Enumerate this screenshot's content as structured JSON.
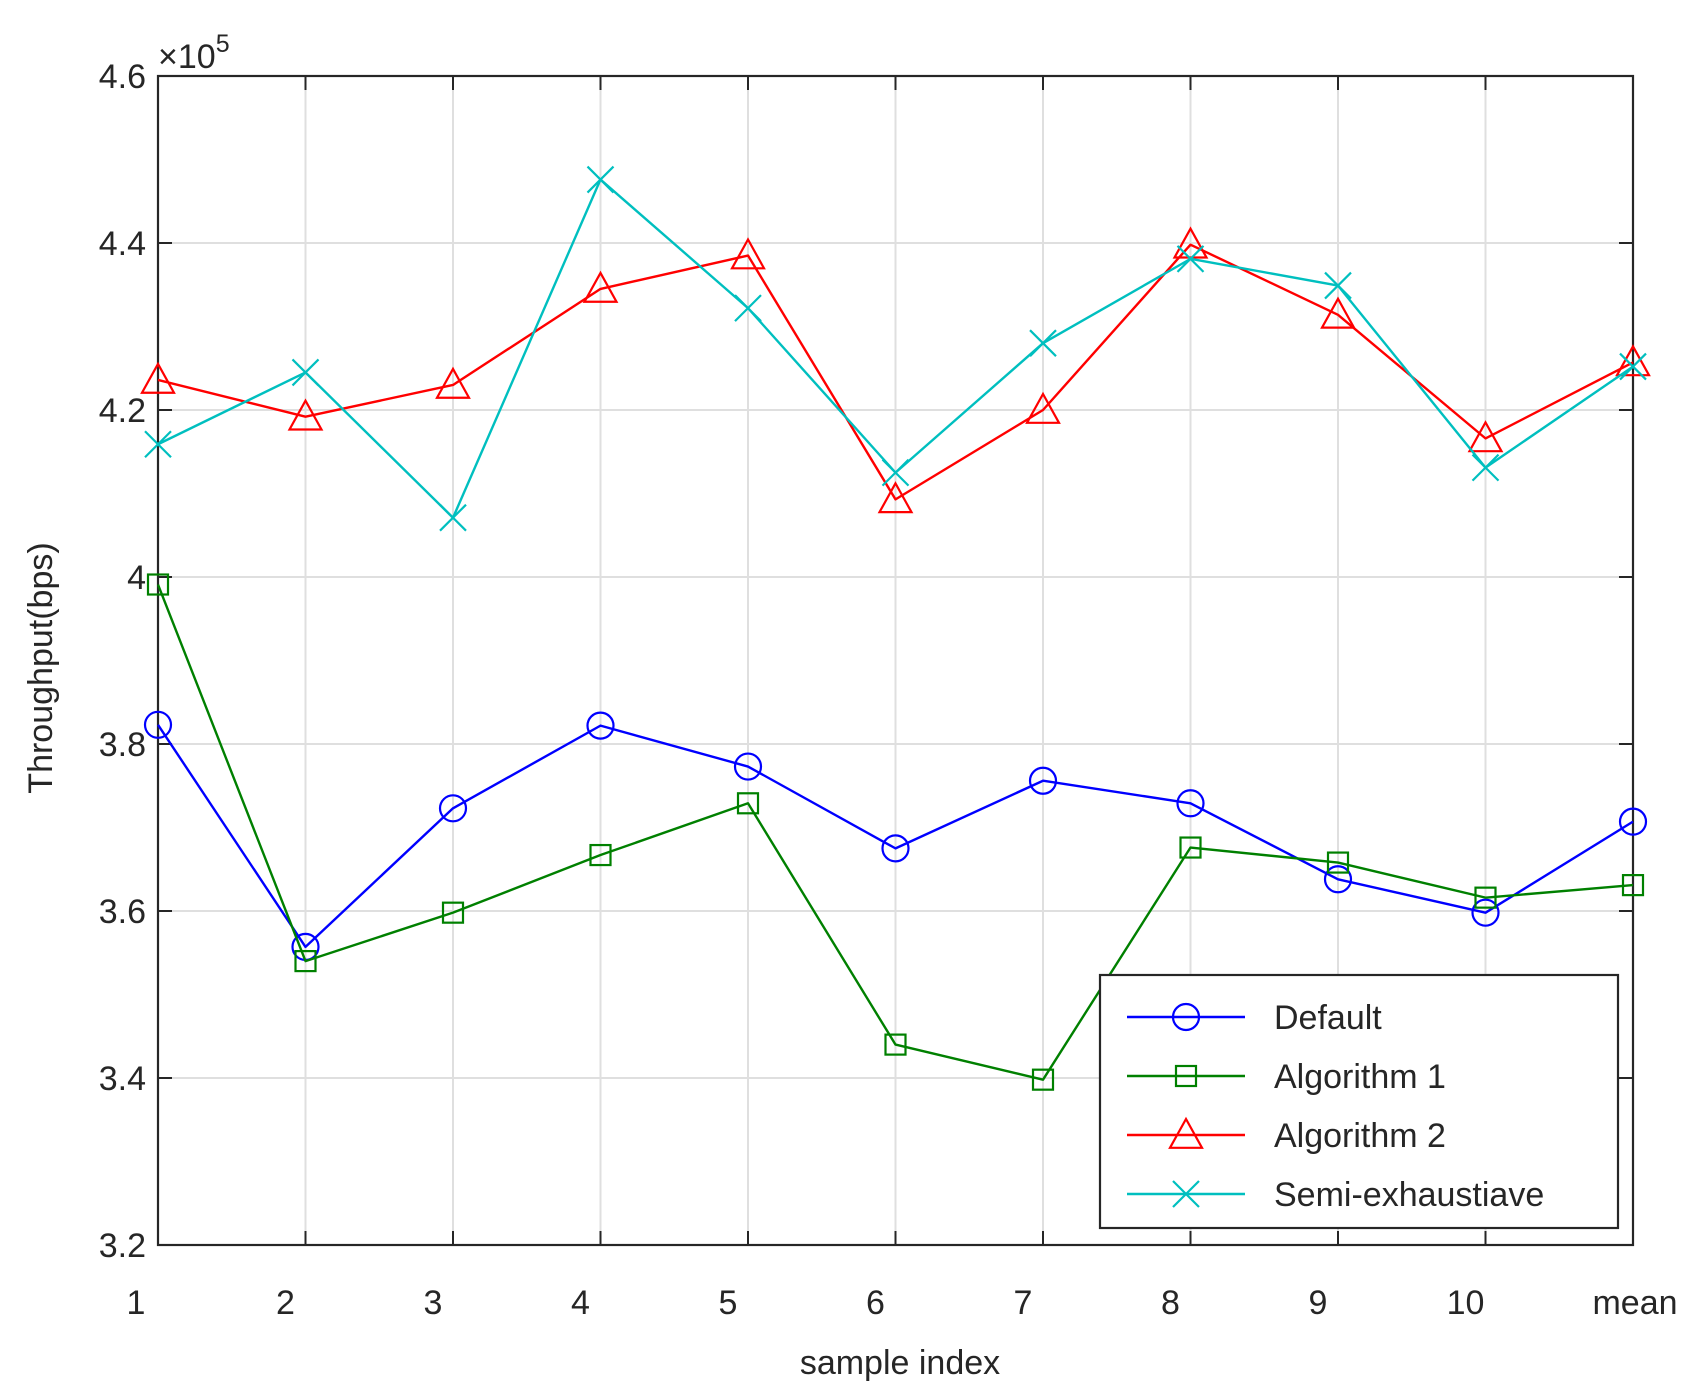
{
  "chart_data": {
    "type": "line",
    "title": "",
    "xlabel": "sample index",
    "ylabel": "Throughput(bps)",
    "y_exponent_label": "×10",
    "y_exponent_power": "5",
    "categories": [
      "1",
      "2",
      "3",
      "4",
      "5",
      "6",
      "7",
      "8",
      "9",
      "10",
      "mean"
    ],
    "ylim": [
      3.2,
      4.6
    ],
    "yticks": [
      3.2,
      3.4,
      3.6,
      3.8,
      4.0,
      4.2,
      4.4,
      4.6
    ],
    "ytick_labels": [
      "3.2",
      "3.4",
      "3.6",
      "3.8",
      "4",
      "4.2",
      "4.4",
      "4.6"
    ],
    "grid": true,
    "legend_position": "bottom-right",
    "series": [
      {
        "name": "Default",
        "color": "#0000ff",
        "marker": "circle",
        "values": [
          3.823,
          3.557,
          3.723,
          3.822,
          3.773,
          3.675,
          3.756,
          3.729,
          3.638,
          3.598,
          3.707
        ]
      },
      {
        "name": "Algorithm 1",
        "color": "#008000",
        "marker": "square",
        "values": [
          3.991,
          3.54,
          3.598,
          3.667,
          3.729,
          3.44,
          3.398,
          3.676,
          3.658,
          3.616,
          3.631
        ]
      },
      {
        "name": "Algorithm 2",
        "color": "#ff0000",
        "marker": "triangle",
        "values": [
          4.236,
          4.192,
          4.23,
          4.345,
          4.385,
          4.093,
          4.2,
          4.398,
          4.314,
          4.166,
          4.257
        ]
      },
      {
        "name": "Semi-exhaustiave",
        "color": "#00bfbf",
        "marker": "x",
        "values": [
          4.159,
          4.245,
          4.071,
          4.476,
          4.322,
          4.125,
          4.28,
          4.381,
          4.349,
          4.131,
          4.252
        ]
      }
    ]
  }
}
